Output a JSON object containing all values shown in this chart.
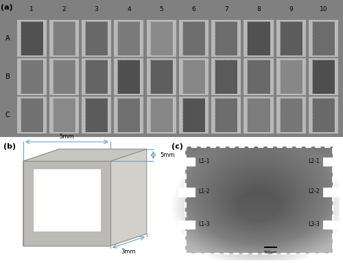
{
  "fig_width": 5.0,
  "fig_height": 3.84,
  "dpi": 100,
  "background_color": "#ffffff",
  "panel_a": {
    "label": "(a)",
    "col_labels": [
      "1",
      "2",
      "3",
      "4",
      "5",
      "6",
      "7",
      "8",
      "9",
      "10"
    ],
    "row_labels": [
      "A",
      "B",
      "C"
    ],
    "overall_bg": "#888888",
    "cell_frame_color": "#c8c8c8",
    "cell_dark_color": "#555555",
    "cell_darker_color": "#3a3a3a",
    "dashed_border_color": "#dddddd"
  },
  "panel_b": {
    "label": "(b)",
    "dim_top": "5mm",
    "dim_right": "5mm",
    "dim_bottom": "3mm",
    "front_face": "#c0bfbc",
    "left_face": "#a8a8a5",
    "right_face": "#d0cec8",
    "top_face": "#d8d6d0",
    "bottom_face": "#909090",
    "inner_color": "#ffffff",
    "line_color": "#6b9fc8",
    "edge_color": "#888884"
  },
  "panel_c": {
    "label": "(c)",
    "labels_left": [
      "L1-1",
      "L1-2",
      "L1-3"
    ],
    "labels_right": [
      "L2-1",
      "L2-2",
      "L3-3"
    ],
    "scale_bar_text": "500μm",
    "rect_fill": "#ffffff",
    "rect_edge": "#ffffff",
    "text_color": "#000000",
    "border_color": "#ffffff"
  }
}
